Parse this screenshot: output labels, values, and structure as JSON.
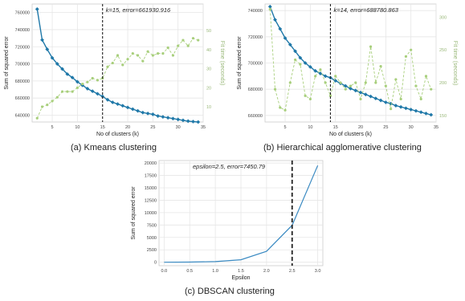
{
  "colors": {
    "sse": "#1f78a8",
    "fit": "#a8cf7c",
    "fit_tick": "#9ab87a",
    "dbscan": "#3a8ac2",
    "grid": "#e6e6e6",
    "vline": "#222222"
  },
  "captions": {
    "a": "(a) Kmeans clustering",
    "b": "(b) Hierarchical agglomerative clustering",
    "c": "(c) DBSCAN clustering"
  },
  "chart_data": [
    {
      "id": "a",
      "type": "line",
      "annotation": "k=15, error=661930.916",
      "xlabel": "No of clusters (k)",
      "ylabel": "Sum of squared error",
      "ylabel2": "Fit time (seconds)",
      "xlim": [
        1,
        35
      ],
      "ylim": [
        632000,
        770000
      ],
      "y2lim": [
        2,
        64
      ],
      "xticks": [
        5,
        10,
        15,
        20,
        25,
        30,
        35
      ],
      "yticks": [
        640000,
        660000,
        680000,
        700000,
        720000,
        740000,
        760000
      ],
      "yticklabels": [
        "640000",
        "660000",
        "680000",
        "700000",
        "720000",
        "740000",
        "760000"
      ],
      "y2ticks": [
        10,
        20,
        30,
        40,
        50
      ],
      "y2ticklabels": [
        "10",
        "20",
        "30",
        "40",
        "50"
      ],
      "vline": 15,
      "x": [
        2,
        3,
        4,
        5,
        6,
        7,
        8,
        9,
        10,
        11,
        12,
        13,
        14,
        15,
        16,
        17,
        18,
        19,
        20,
        21,
        22,
        23,
        24,
        25,
        26,
        27,
        28,
        29,
        30,
        31,
        32,
        33,
        34
      ],
      "series": [
        {
          "name": "",
          "axis": "left",
          "values": [
            764000,
            728000,
            717000,
            707000,
            700000,
            694000,
            688000,
            684000,
            679000,
            675000,
            671000,
            668000,
            665000,
            661931,
            658000,
            655000,
            653000,
            651000,
            649000,
            647000,
            645000,
            643000,
            642000,
            641000,
            639000,
            638000,
            637000,
            636000,
            635000,
            634000,
            633000,
            632500,
            632000
          ]
        },
        {
          "name": "",
          "axis": "right",
          "values": [
            4,
            10,
            11,
            13,
            15,
            18,
            18,
            18,
            20,
            22,
            23,
            25,
            24,
            25,
            31,
            33,
            37,
            32,
            35,
            38,
            37,
            34,
            39,
            37,
            38,
            38,
            41,
            37,
            42,
            45,
            42,
            46,
            45
          ]
        }
      ]
    },
    {
      "id": "b",
      "type": "line",
      "annotation": "k=14, error=688780.863",
      "xlabel": "No of clusters (k)",
      "ylabel": "Sum of squared error",
      "ylabel2": "Fit time (seconds)",
      "xlim": [
        1,
        35
      ],
      "ylim": [
        655000,
        745000
      ],
      "y2lim": [
        140,
        320
      ],
      "xticks": [
        5,
        10,
        15,
        20,
        25,
        30,
        35
      ],
      "yticks": [
        660000,
        680000,
        700000,
        720000,
        740000
      ],
      "yticklabels": [
        "660000",
        "680000",
        "700000",
        "720000",
        "740000"
      ],
      "y2ticks": [
        150,
        200,
        250,
        300
      ],
      "y2ticklabels": [
        "150",
        "200",
        "250",
        "300"
      ],
      "vline": 14,
      "x": [
        2,
        3,
        4,
        5,
        6,
        7,
        8,
        9,
        10,
        11,
        12,
        13,
        14,
        15,
        16,
        17,
        18,
        19,
        20,
        21,
        22,
        23,
        24,
        25,
        26,
        27,
        28,
        29,
        30,
        31,
        32,
        33,
        34
      ],
      "series": [
        {
          "name": "",
          "axis": "left",
          "values": [
            743000,
            733000,
            726000,
            719000,
            714000,
            709000,
            704000,
            700000,
            697000,
            694000,
            692000,
            690000,
            688781,
            686500,
            684500,
            682500,
            680500,
            679000,
            677500,
            676000,
            674500,
            673000,
            671500,
            670000,
            669000,
            667500,
            666500,
            665500,
            664500,
            663500,
            662500,
            661500,
            660500
          ]
        },
        {
          "name": "",
          "axis": "right",
          "values": [
            312,
            190,
            162,
            158,
            200,
            235,
            228,
            180,
            175,
            210,
            220,
            200,
            180,
            210,
            200,
            190,
            195,
            200,
            175,
            200,
            255,
            200,
            225,
            195,
            160,
            205,
            175,
            240,
            250,
            195,
            175,
            210,
            190
          ]
        }
      ]
    },
    {
      "id": "c",
      "type": "line",
      "annotation": "epsilon=2.5, error=7450.79",
      "xlabel": "Epsilon",
      "ylabel": "Sum of squared error",
      "xlim": [
        -0.1,
        3.1
      ],
      "ylim": [
        -700,
        20500
      ],
      "xticks": [
        0,
        0.5,
        1,
        1.5,
        2,
        2.5,
        3
      ],
      "xticklabels": [
        "0.0",
        "0.5",
        "1.0",
        "1.5",
        "2.0",
        "2.5",
        "3.0"
      ],
      "yticks": [
        0,
        2500,
        5000,
        7500,
        10000,
        12500,
        15000,
        17500,
        20000
      ],
      "yticklabels": [
        "0",
        "2500",
        "5000",
        "7500",
        "10000",
        "12500",
        "15000",
        "17500",
        "20000"
      ],
      "vline": 2.5,
      "x": [
        0,
        0.5,
        1,
        1.5,
        2,
        2.5,
        3
      ],
      "series": [
        {
          "name": "",
          "axis": "left",
          "values": [
            0,
            30,
            120,
            500,
            2200,
            7450.79,
            19500
          ]
        }
      ]
    }
  ]
}
